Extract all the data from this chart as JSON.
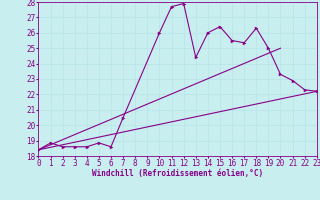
{
  "xlabel": "Windchill (Refroidissement éolien,°C)",
  "bg_color": "#c8eef0",
  "line_color": "#880088",
  "xlim": [
    0,
    23
  ],
  "ylim": [
    18,
    28
  ],
  "xticks": [
    0,
    1,
    2,
    3,
    4,
    5,
    6,
    7,
    8,
    9,
    10,
    11,
    12,
    13,
    14,
    15,
    16,
    17,
    18,
    19,
    20,
    21,
    22,
    23
  ],
  "yticks": [
    18,
    19,
    20,
    21,
    22,
    23,
    24,
    25,
    26,
    27,
    28
  ],
  "line1_x": [
    0,
    1,
    2,
    3,
    4,
    5,
    6,
    7,
    10,
    11,
    12,
    13,
    14,
    15,
    16,
    17,
    18,
    19,
    20,
    21,
    22,
    23
  ],
  "line1_y": [
    18.4,
    18.85,
    18.6,
    18.6,
    18.6,
    18.85,
    18.6,
    20.5,
    26.0,
    27.7,
    27.9,
    24.4,
    26.0,
    26.4,
    25.5,
    25.35,
    26.3,
    25.0,
    23.3,
    22.9,
    22.3,
    22.2
  ],
  "line2_x": [
    0,
    23
  ],
  "line2_y": [
    18.4,
    22.2
  ],
  "line3_x": [
    0,
    20
  ],
  "line3_y": [
    18.4,
    25.0
  ],
  "grid_color": "#b8e4e8",
  "tick_fontsize": 5.5,
  "xlabel_fontsize": 5.5
}
